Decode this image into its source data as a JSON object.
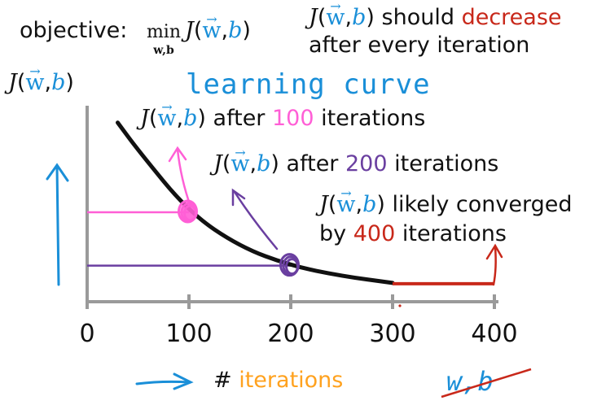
{
  "objective": {
    "label": "objective:",
    "min": "min",
    "min_sub": "w,b"
  },
  "function_symbol": {
    "J": "J",
    "w": "w",
    "b": "b",
    "comma": ",",
    "open": "(",
    "close": ")"
  },
  "top_note": {
    "line1_pre": "should",
    "line1_red": "decrease",
    "line2": "after every iteration"
  },
  "title": "learning curve",
  "annotations": {
    "a100_pre": "after",
    "a100_num": "100",
    "a100_post": "iterations",
    "a200_pre": "after",
    "a200_num": "200",
    "a200_post": "iterations",
    "a400_line1": "likely converged",
    "a400_pre": "by",
    "a400_num": "400",
    "a400_post": "iterations"
  },
  "axis": {
    "ylabel_J": "J",
    "xlabel_hash": "#",
    "xlabel_word": "iterations",
    "struck": "w,b",
    "ticks": [
      "0",
      "100",
      "200",
      "300",
      "400"
    ]
  },
  "colors": {
    "pink": "#ff5fd6",
    "purple": "#6a3fa0",
    "red": "#c8281a",
    "blue": "#1a8fd8",
    "orange": "#ffa21f"
  },
  "chart_data": {
    "type": "line",
    "x": [
      30,
      50,
      100,
      150,
      200,
      250,
      300,
      400
    ],
    "ylim": [
      0,
      1
    ],
    "xlim": [
      0,
      400
    ],
    "series": [
      {
        "values": [
          0.94,
          0.78,
          0.42,
          0.22,
          0.11,
          0.05,
          0.01,
          0.01
        ]
      }
    ],
    "highlights": [
      {
        "x": 100,
        "y": 0.42,
        "color": "pink"
      },
      {
        "x": 200,
        "y": 0.11,
        "color": "purple"
      }
    ],
    "converged_from": 300
  }
}
